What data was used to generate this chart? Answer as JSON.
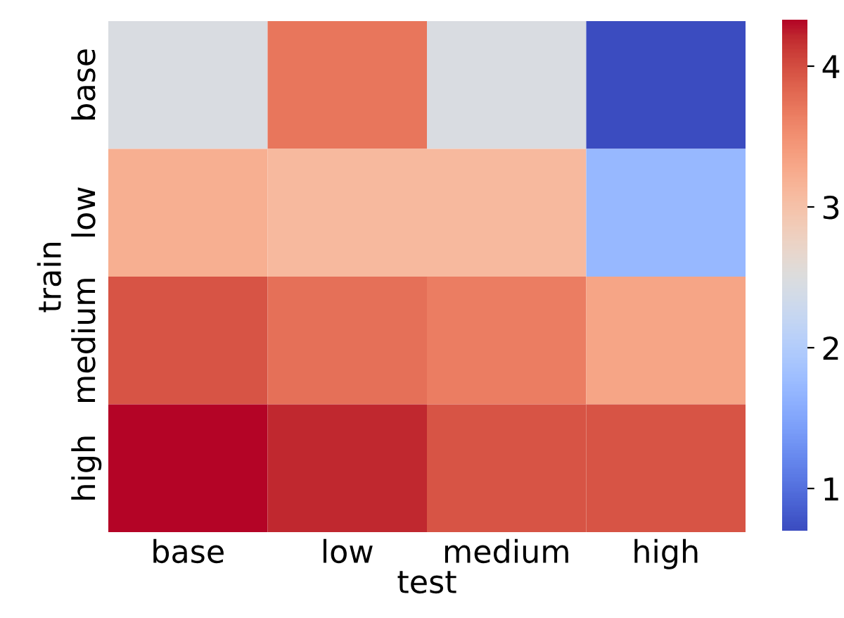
{
  "chart_data": {
    "type": "heatmap",
    "xlabel": "test",
    "ylabel": "train",
    "categories": [
      "base",
      "low",
      "medium",
      "high"
    ],
    "y_categories": [
      "base",
      "low",
      "medium",
      "high"
    ],
    "cells": [
      [
        2.45,
        3.7,
        2.45,
        0.69
      ],
      [
        3.2,
        3.1,
        3.1,
        1.7
      ],
      [
        3.95,
        3.75,
        3.65,
        3.3
      ],
      [
        4.32,
        4.2,
        3.95,
        3.95
      ]
    ],
    "clim": [
      0.69,
      4.32
    ],
    "cticks": [
      1,
      2,
      3,
      4
    ]
  }
}
